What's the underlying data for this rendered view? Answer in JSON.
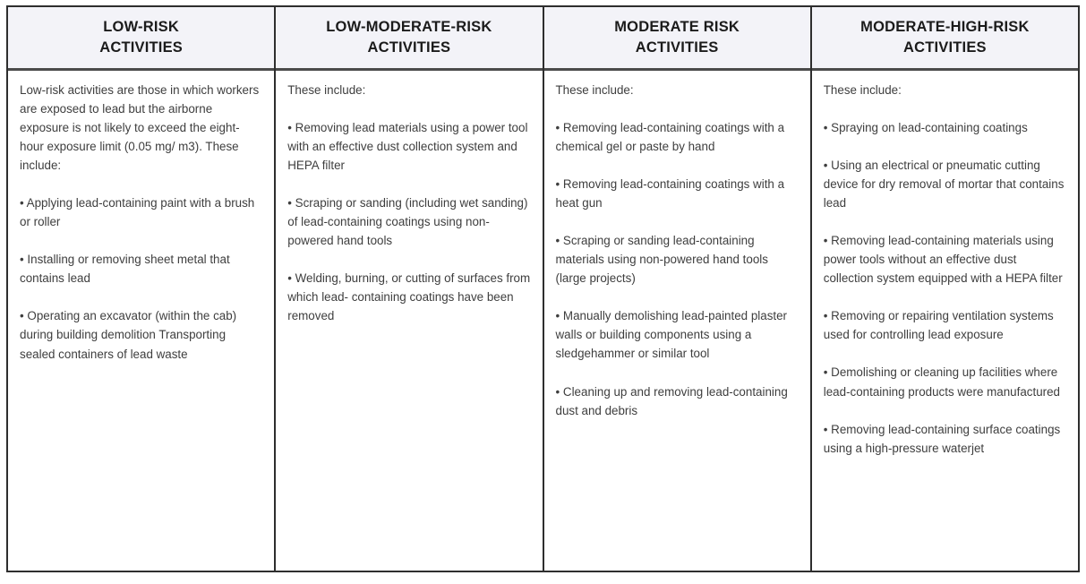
{
  "table": {
    "header_bg": "#f3f3f8",
    "border_color": "#2e2e2e",
    "header_text_color": "#1b1b1b",
    "body_text_color": "#3e3e3e",
    "columns": [
      {
        "id": "low-risk",
        "header_line1": "LOW-RISK",
        "header_line2": "ACTIVITIES",
        "paragraphs": [
          "Low-risk activities are those in which workers are exposed to lead but the airborne exposure is not likely to exceed the eight-hour exposure limit (0.05 mg/ m3). These include:",
          "• Applying lead-containing paint with a brush or roller",
          "• Installing or removing sheet metal that contains lead",
          "• Operating an excavator (within the cab) during building demolition Transporting sealed containers of lead waste"
        ]
      },
      {
        "id": "low-moderate-risk",
        "header_line1": "LOW-MODERATE-RISK",
        "header_line2": "ACTIVITIES",
        "paragraphs": [
          "These include:",
          "• Removing lead materials using a power tool with an effective dust collection system and HEPA filter",
          "• Scraping or sanding (including wet sanding) of lead-containing coatings using non-powered hand tools",
          "• Welding, burning, or cutting of surfaces from which lead- containing coatings have been removed"
        ]
      },
      {
        "id": "moderate-risk",
        "header_line1": "MODERATE RISK",
        "header_line2": "ACTIVITIES",
        "paragraphs": [
          "These include:",
          "• Removing lead-containing coatings with a chemical gel or paste by hand",
          "• Removing lead-containing coatings with a heat gun",
          "• Scraping or sanding lead-containing materials using non-powered hand tools (large projects)",
          "• Manually demolishing lead-painted plaster walls or building components using a sledgehammer or similar tool",
          "• Cleaning up and removing lead-containing dust and debris"
        ]
      },
      {
        "id": "moderate-high-risk",
        "header_line1": "MODERATE-HIGH-RISK",
        "header_line2": "ACTIVITIES",
        "paragraphs": [
          "These include:",
          "• Spraying on lead-containing coatings",
          "• Using an electrical or pneumatic cutting device for dry removal of mortar that contains lead",
          "• Removing lead-containing materials using power tools without an effective dust collection system equipped with a HEPA filter",
          "• Removing or repairing ventilation systems used for controlling lead exposure",
          "• Demolishing or cleaning up facilities where lead-containing products were manufactured",
          "• Removing lead-containing surface coatings using a high-pressure waterjet"
        ]
      }
    ]
  }
}
